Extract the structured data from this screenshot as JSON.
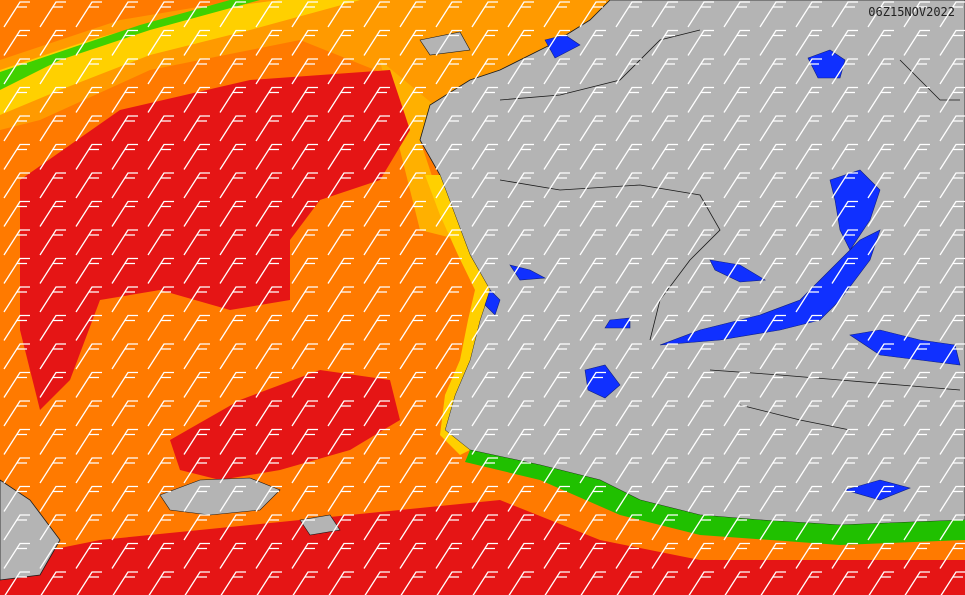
{
  "timestamp": "06Z15NOV2022"
}
